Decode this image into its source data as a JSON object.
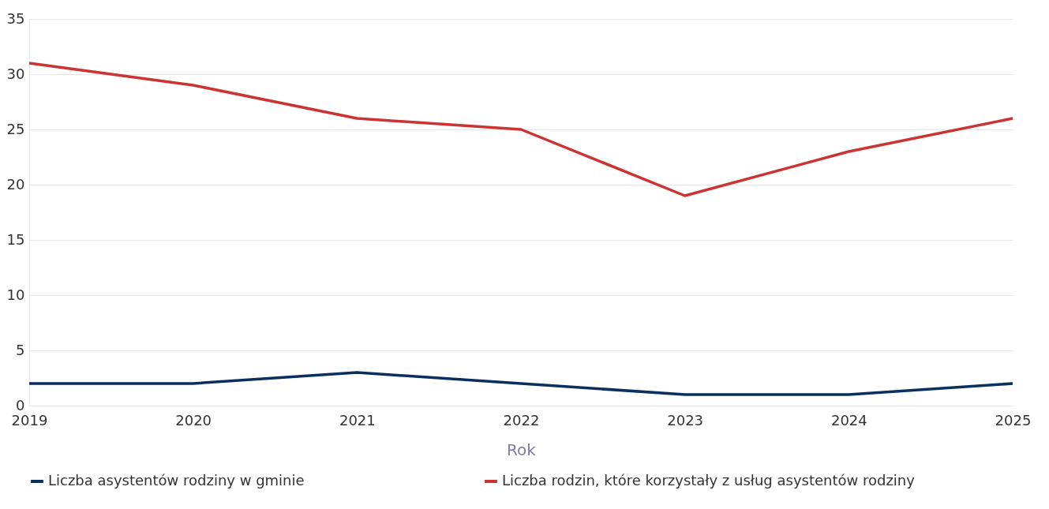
{
  "chart_data": {
    "type": "line",
    "xlabel": "Rok",
    "x": [
      2019,
      2020,
      2021,
      2022,
      2023,
      2024,
      2025
    ],
    "series": [
      {
        "name": "Liczba asystentów rodziny w gminie",
        "color": "#0b2f5e",
        "values": [
          2,
          2,
          3,
          2,
          1,
          1,
          2
        ]
      },
      {
        "name": "Liczba rodzin, które korzystały z usług asystentów rodziny",
        "color": "#cc3333",
        "values": [
          31,
          29,
          26,
          25,
          19,
          23,
          26
        ]
      }
    ],
    "xlim": [
      2019,
      2025
    ],
    "xticks": [
      2019,
      2020,
      2021,
      2022,
      2023,
      2024,
      2025
    ],
    "ylim": [
      0,
      35
    ],
    "yticks": [
      0,
      5,
      10,
      15,
      20,
      25,
      30,
      35
    ],
    "grid": "y",
    "legend": "bottom",
    "marker": "none",
    "line_style": "solid"
  }
}
